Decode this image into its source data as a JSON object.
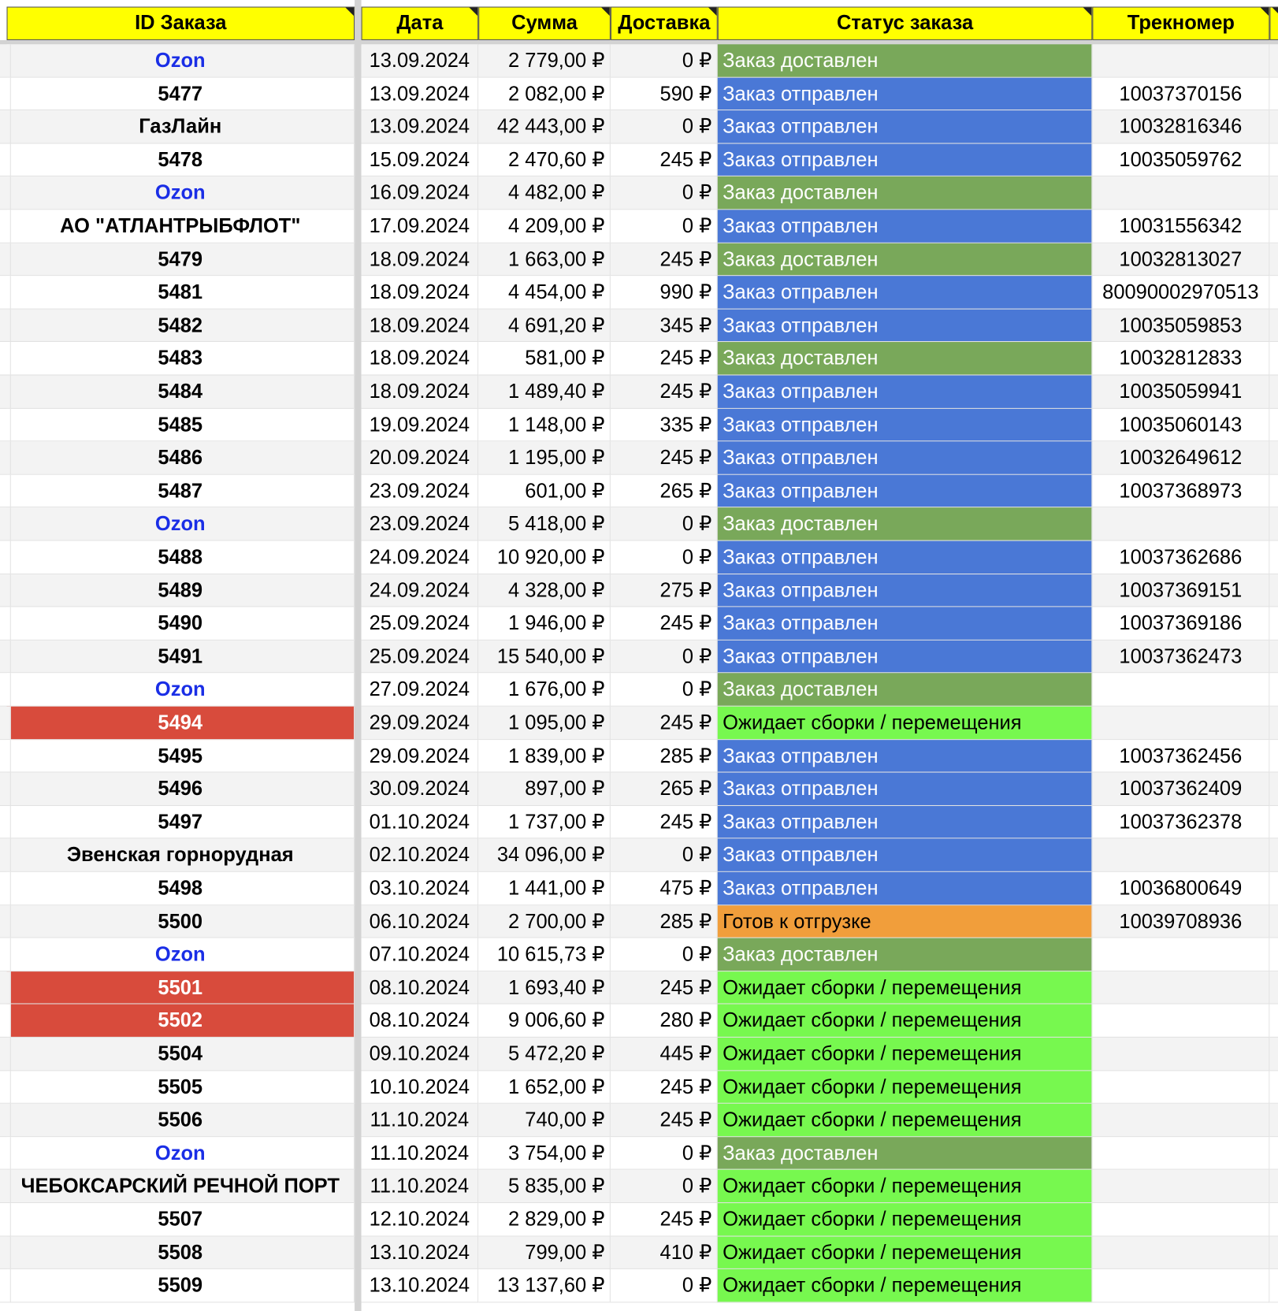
{
  "table": {
    "header": [
      "ID Заказа",
      "Дата",
      "Сумма",
      "Доставка",
      "Статус заказа",
      "Трекномер"
    ],
    "rows": [
      {
        "id": "Ozon",
        "id_color": "#1a2ee6",
        "date": "13.09.2024",
        "sum": "2 779,00 ₽",
        "delivery": "0 ₽",
        "status": "Заказ доставлен",
        "status_fill": "#79a85a",
        "status_color": "#ffffff"
      },
      {
        "id": "5477",
        "date": "13.09.2024",
        "sum": "2 082,00 ₽",
        "delivery": "590 ₽",
        "status": "Заказ отправлен",
        "status_fill": "#4a78d6",
        "status_color": "#ffffff",
        "track": "10037370156"
      },
      {
        "id": "ГазЛайн",
        "date": "13.09.2024",
        "sum": "42 443,00 ₽",
        "delivery": "0 ₽",
        "status": "Заказ отправлен",
        "status_fill": "#4a78d6",
        "status_color": "#ffffff",
        "track": "10032816346"
      },
      {
        "id": "5478",
        "date": "15.09.2024",
        "sum": "2 470,60 ₽",
        "delivery": "245 ₽",
        "status": "Заказ отправлен",
        "status_fill": "#4a78d6",
        "status_color": "#ffffff",
        "track": "10035059762"
      },
      {
        "id": "Ozon",
        "id_color": "#1a2ee6",
        "date": "16.09.2024",
        "sum": "4 482,00 ₽",
        "delivery": "0 ₽",
        "status": "Заказ доставлен",
        "status_fill": "#79a85a",
        "status_color": "#ffffff"
      },
      {
        "id": "АО \"АТЛАНТРЫБФЛОТ\"",
        "date": "17.09.2024",
        "sum": "4 209,00 ₽",
        "delivery": "0 ₽",
        "status": "Заказ отправлен",
        "status_fill": "#4a78d6",
        "status_color": "#ffffff",
        "track": "10031556342"
      },
      {
        "id": "5479",
        "date": "18.09.2024",
        "sum": "1 663,00 ₽",
        "delivery": "245 ₽",
        "status": "Заказ доставлен",
        "status_fill": "#79a85a",
        "status_color": "#ffffff",
        "track": "10032813027"
      },
      {
        "id": "5481",
        "date": "18.09.2024",
        "sum": "4 454,00 ₽",
        "delivery": "990 ₽",
        "status": "Заказ отправлен",
        "status_fill": "#4a78d6",
        "status_color": "#ffffff",
        "track": "80090002970513"
      },
      {
        "id": "5482",
        "date": "18.09.2024",
        "sum": "4 691,20 ₽",
        "delivery": "345 ₽",
        "status": "Заказ отправлен",
        "status_fill": "#4a78d6",
        "status_color": "#ffffff",
        "track": "10035059853"
      },
      {
        "id": "5483",
        "date": "18.09.2024",
        "sum": "581,00 ₽",
        "delivery": "245 ₽",
        "status": "Заказ доставлен",
        "status_fill": "#79a85a",
        "status_color": "#ffffff",
        "track": "10032812833"
      },
      {
        "id": "5484",
        "date": "18.09.2024",
        "sum": "1 489,40 ₽",
        "delivery": "245 ₽",
        "status": "Заказ отправлен",
        "status_fill": "#4a78d6",
        "status_color": "#ffffff",
        "track": "10035059941"
      },
      {
        "id": "5485",
        "date": "19.09.2024",
        "sum": "1 148,00 ₽",
        "delivery": "335 ₽",
        "status": "Заказ отправлен",
        "status_fill": "#4a78d6",
        "status_color": "#ffffff",
        "track": "10035060143"
      },
      {
        "id": "5486",
        "date": "20.09.2024",
        "sum": "1 195,00 ₽",
        "delivery": "245 ₽",
        "status": "Заказ отправлен",
        "status_fill": "#4a78d6",
        "status_color": "#ffffff",
        "track": "10032649612"
      },
      {
        "id": "5487",
        "date": "23.09.2024",
        "sum": "601,00 ₽",
        "delivery": "265 ₽",
        "status": "Заказ отправлен",
        "status_fill": "#4a78d6",
        "status_color": "#ffffff",
        "track": "10037368973"
      },
      {
        "id": "Ozon",
        "id_color": "#1a2ee6",
        "date": "23.09.2024",
        "sum": "5 418,00 ₽",
        "delivery": "0 ₽",
        "status": "Заказ доставлен",
        "status_fill": "#79a85a",
        "status_color": "#ffffff"
      },
      {
        "id": "5488",
        "date": "24.09.2024",
        "sum": "10 920,00 ₽",
        "delivery": "0 ₽",
        "status": "Заказ отправлен",
        "status_fill": "#4a78d6",
        "status_color": "#ffffff",
        "track": "10037362686"
      },
      {
        "id": "5489",
        "date": "24.09.2024",
        "sum": "4 328,00 ₽",
        "delivery": "275 ₽",
        "status": "Заказ отправлен",
        "status_fill": "#4a78d6",
        "status_color": "#ffffff",
        "track": "10037369151"
      },
      {
        "id": "5490",
        "date": "25.09.2024",
        "sum": "1 946,00 ₽",
        "delivery": "245 ₽",
        "status": "Заказ отправлен",
        "status_fill": "#4a78d6",
        "status_color": "#ffffff",
        "track": "10037369186"
      },
      {
        "id": "5491",
        "date": "25.09.2024",
        "sum": "15 540,00 ₽",
        "delivery": "0 ₽",
        "status": "Заказ отправлен",
        "status_fill": "#4a78d6",
        "status_color": "#ffffff",
        "track": "10037362473"
      },
      {
        "id": "Ozon",
        "id_color": "#1a2ee6",
        "date": "27.09.2024",
        "sum": "1 676,00 ₽",
        "delivery": "0 ₽",
        "status": "Заказ доставлен",
        "status_fill": "#79a85a",
        "status_color": "#ffffff"
      },
      {
        "id": "5494",
        "id_fill": "#d84b3c",
        "id_color": "#ffffff",
        "date": "29.09.2024",
        "sum": "1 095,00 ₽",
        "delivery": "245 ₽",
        "status": "Ожидает сборки / перемещения",
        "status_fill": "#77f84f",
        "status_color": "#000000"
      },
      {
        "id": "5495",
        "date": "29.09.2024",
        "sum": "1 839,00 ₽",
        "delivery": "285 ₽",
        "status": "Заказ отправлен",
        "status_fill": "#4a78d6",
        "status_color": "#ffffff",
        "track": "10037362456"
      },
      {
        "id": "5496",
        "date": "30.09.2024",
        "sum": "897,00 ₽",
        "delivery": "265 ₽",
        "status": "Заказ отправлен",
        "status_fill": "#4a78d6",
        "status_color": "#ffffff",
        "track": "10037362409"
      },
      {
        "id": "5497",
        "date": "01.10.2024",
        "sum": "1 737,00 ₽",
        "delivery": "245 ₽",
        "status": "Заказ отправлен",
        "status_fill": "#4a78d6",
        "status_color": "#ffffff",
        "track": "10037362378"
      },
      {
        "id": "Эвенская горнорудная",
        "date": "02.10.2024",
        "sum": "34 096,00 ₽",
        "delivery": "0 ₽",
        "status": "Заказ отправлен",
        "status_fill": "#4a78d6",
        "status_color": "#ffffff"
      },
      {
        "id": "5498",
        "date": "03.10.2024",
        "sum": "1 441,00 ₽",
        "delivery": "475 ₽",
        "status": "Заказ отправлен",
        "status_fill": "#4a78d6",
        "status_color": "#ffffff",
        "track": "10036800649"
      },
      {
        "id": "5500",
        "date": "06.10.2024",
        "sum": "2 700,00 ₽",
        "delivery": "285 ₽",
        "status": "Готов к отгрузке",
        "status_fill": "#f19e3b",
        "status_color": "#000000",
        "track": "10039708936"
      },
      {
        "id": "Ozon",
        "id_color": "#1a2ee6",
        "date": "07.10.2024",
        "sum": "10 615,73 ₽",
        "delivery": "0 ₽",
        "status": "Заказ доставлен",
        "status_fill": "#79a85a",
        "status_color": "#ffffff"
      },
      {
        "id": "5501",
        "id_fill": "#d84b3c",
        "id_color": "#ffffff",
        "date": "08.10.2024",
        "sum": "1 693,40 ₽",
        "delivery": "245 ₽",
        "status": "Ожидает сборки / перемещения",
        "status_fill": "#77f84f",
        "status_color": "#000000"
      },
      {
        "id": "5502",
        "id_fill": "#d84b3c",
        "id_color": "#ffffff",
        "date": "08.10.2024",
        "sum": "9 006,60 ₽",
        "delivery": "280 ₽",
        "status": "Ожидает сборки / перемещения",
        "status_fill": "#77f84f",
        "status_color": "#000000"
      },
      {
        "id": "5504",
        "date": "09.10.2024",
        "sum": "5 472,20 ₽",
        "delivery": "445 ₽",
        "status": "Ожидает сборки / перемещения",
        "status_fill": "#77f84f",
        "status_color": "#000000"
      },
      {
        "id": "5505",
        "date": "10.10.2024",
        "sum": "1 652,00 ₽",
        "delivery": "245 ₽",
        "status": "Ожидает сборки / перемещения",
        "status_fill": "#77f84f",
        "status_color": "#000000"
      },
      {
        "id": "5506",
        "date": "11.10.2024",
        "sum": "740,00 ₽",
        "delivery": "245 ₽",
        "status": "Ожидает сборки / перемещения",
        "status_fill": "#77f84f",
        "status_color": "#000000"
      },
      {
        "id": "Ozon",
        "id_color": "#1a2ee6",
        "date": "11.10.2024",
        "sum": "3 754,00 ₽",
        "delivery": "0 ₽",
        "status": "Заказ доставлен",
        "status_fill": "#79a85a",
        "status_color": "#ffffff"
      },
      {
        "id": "ЧЕБОКСАРСКИЙ РЕЧНОЙ ПОРТ",
        "date": "11.10.2024",
        "sum": "5 835,00 ₽",
        "delivery": "0 ₽",
        "status": "Ожидает сборки / перемещения",
        "status_fill": "#77f84f",
        "status_color": "#000000"
      },
      {
        "id": "5507",
        "date": "12.10.2024",
        "sum": "2 829,00 ₽",
        "delivery": "245 ₽",
        "status": "Ожидает сборки / перемещения",
        "status_fill": "#77f84f",
        "status_color": "#000000"
      },
      {
        "id": "5508",
        "date": "13.10.2024",
        "sum": "799,00 ₽",
        "delivery": "410 ₽",
        "status": "Ожидает сборки / перемещения",
        "status_fill": "#77f84f",
        "status_color": "#000000"
      },
      {
        "id": "5509",
        "date": "13.10.2024",
        "sum": "13 137,60 ₽",
        "delivery": "0 ₽",
        "status": "Ожидает сборки / перемещения",
        "status_fill": "#77f84f",
        "status_color": "#000000"
      }
    ]
  }
}
